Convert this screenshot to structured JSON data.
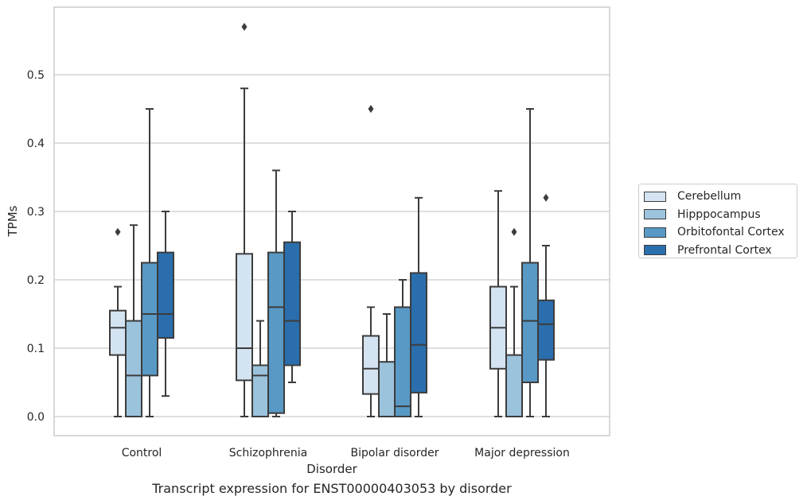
{
  "chart_data": {
    "type": "box",
    "title": "Transcript expression for ENST00000403053 by disorder",
    "xlabel": "Disorder",
    "ylabel": "TPMs",
    "ylim": [
      -0.028,
      0.6
    ],
    "yticks": [
      "0.0",
      "0.1",
      "0.2",
      "0.3",
      "0.4",
      "0.5"
    ],
    "ytick_values": [
      0.0,
      0.1,
      0.2,
      0.3,
      0.4,
      0.5
    ],
    "grid": true,
    "legend_position": "right, outside plot",
    "categories": [
      "Control",
      "Schizophrenia",
      "Bipolar disorder",
      "Major depression"
    ],
    "series": [
      {
        "name": "Cerebellum",
        "color": "#d4e3f1",
        "boxes": [
          {
            "whisker_low": 0.0,
            "q1": 0.09,
            "median": 0.13,
            "q3": 0.155,
            "whisker_high": 0.19,
            "outliers": [
              0.27
            ]
          },
          {
            "whisker_low": 0.0,
            "q1": 0.053,
            "median": 0.1,
            "q3": 0.238,
            "whisker_high": 0.48,
            "outliers": [
              0.57
            ]
          },
          {
            "whisker_low": 0.0,
            "q1": 0.033,
            "median": 0.07,
            "q3": 0.118,
            "whisker_high": 0.16,
            "outliers": [
              0.45
            ]
          },
          {
            "whisker_low": 0.0,
            "q1": 0.07,
            "median": 0.13,
            "q3": 0.19,
            "whisker_high": 0.33,
            "outliers": []
          }
        ]
      },
      {
        "name": "Hipppocampus",
        "color": "#9cc3dc",
        "boxes": [
          {
            "whisker_low": 0.0,
            "q1": 0.0,
            "median": 0.06,
            "q3": 0.14,
            "whisker_high": 0.28,
            "outliers": []
          },
          {
            "whisker_low": 0.0,
            "q1": 0.0,
            "median": 0.06,
            "q3": 0.075,
            "whisker_high": 0.14,
            "outliers": []
          },
          {
            "whisker_low": 0.0,
            "q1": 0.0,
            "median": 0.0,
            "q3": 0.08,
            "whisker_high": 0.15,
            "outliers": []
          },
          {
            "whisker_low": 0.0,
            "q1": 0.0,
            "median": 0.0,
            "q3": 0.09,
            "whisker_high": 0.19,
            "outliers": [
              0.27
            ]
          }
        ]
      },
      {
        "name": "Orbitofontal Cortex",
        "color": "#5899c5",
        "boxes": [
          {
            "whisker_low": 0.0,
            "q1": 0.06,
            "median": 0.15,
            "q3": 0.225,
            "whisker_high": 0.45,
            "outliers": []
          },
          {
            "whisker_low": 0.0,
            "q1": 0.005,
            "median": 0.16,
            "q3": 0.24,
            "whisker_high": 0.36,
            "outliers": []
          },
          {
            "whisker_low": 0.0,
            "q1": 0.0,
            "median": 0.015,
            "q3": 0.16,
            "whisker_high": 0.2,
            "outliers": []
          },
          {
            "whisker_low": 0.0,
            "q1": 0.05,
            "median": 0.14,
            "q3": 0.225,
            "whisker_high": 0.45,
            "outliers": []
          }
        ]
      },
      {
        "name": "Prefrontal Cortex",
        "color": "#2a6ead",
        "boxes": [
          {
            "whisker_low": 0.03,
            "q1": 0.115,
            "median": 0.15,
            "q3": 0.24,
            "whisker_high": 0.3,
            "outliers": []
          },
          {
            "whisker_low": 0.05,
            "q1": 0.075,
            "median": 0.14,
            "q3": 0.255,
            "whisker_high": 0.3,
            "outliers": []
          },
          {
            "whisker_low": 0.0,
            "q1": 0.035,
            "median": 0.105,
            "q3": 0.21,
            "whisker_high": 0.32,
            "outliers": []
          },
          {
            "whisker_low": 0.0,
            "q1": 0.083,
            "median": 0.135,
            "q3": 0.17,
            "whisker_high": 0.25,
            "outliers": [
              0.32
            ]
          }
        ]
      }
    ]
  }
}
